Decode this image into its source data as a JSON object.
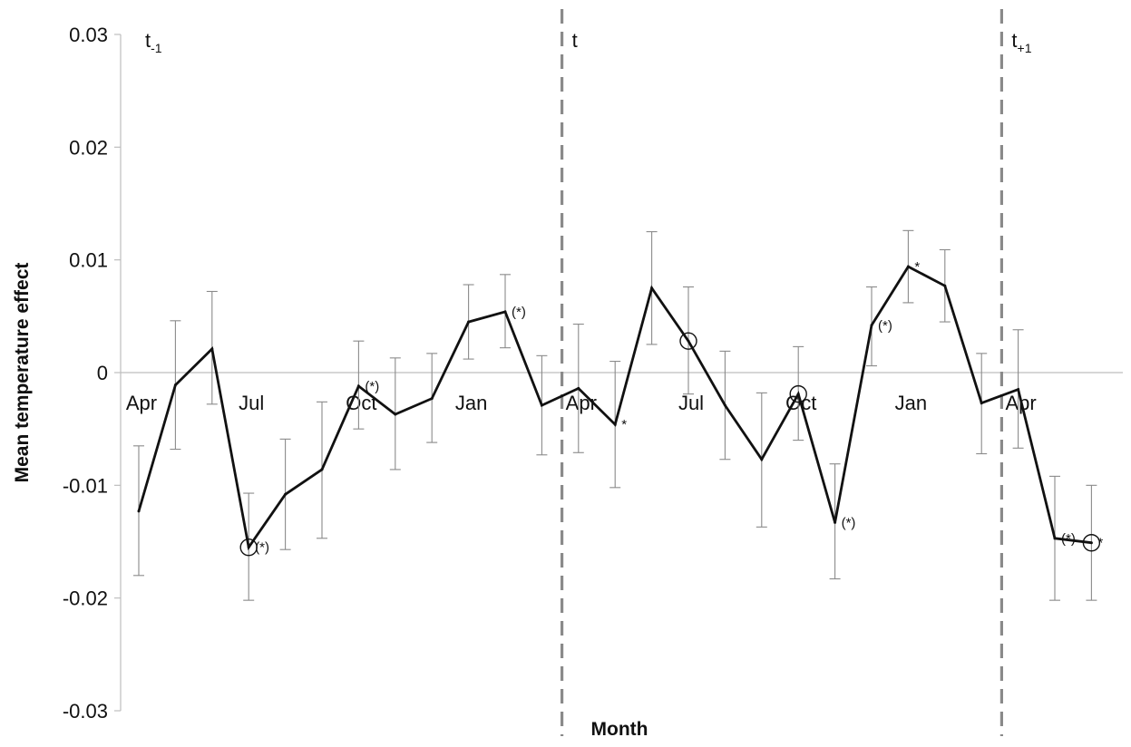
{
  "chart_data": {
    "type": "line",
    "title": "",
    "xlabel": "Month",
    "ylabel": "Mean temperature effect",
    "ylim": [
      -0.03,
      0.03
    ],
    "yticks": [
      0.03,
      0.02,
      0.01,
      0,
      -0.01,
      -0.02,
      -0.03
    ],
    "ytick_labels": [
      "0.03",
      "0.02",
      "0.01",
      "0",
      "-0.01",
      "-0.02",
      "-0.03"
    ],
    "grid": false,
    "period_labels": [
      "t-1",
      "t",
      "t+1"
    ],
    "x_tick_labels": [
      "Apr",
      "Jul",
      "Oct",
      "Jan",
      "Apr",
      "Jul",
      "Oct",
      "Jan",
      "Apr"
    ],
    "x_tick_indices": [
      0,
      3,
      6,
      9,
      12,
      15,
      18,
      21,
      24
    ],
    "period_boundaries": [
      11.5,
      23.5
    ],
    "zero_line": true,
    "series": [
      {
        "values": [
          -0.0123,
          -0.0011,
          0.0021,
          -0.0155,
          -0.0108,
          -0.0086,
          -0.0012,
          -0.0037,
          -0.0023,
          0.0045,
          0.0054,
          -0.0029,
          -0.0014,
          -0.0046,
          0.0075,
          0.0028,
          -0.0029,
          -0.0077,
          -0.0019,
          -0.0133,
          0.0042,
          0.0094,
          0.0077,
          -0.0027,
          -0.0015,
          -0.0147,
          -0.0151
        ],
        "err_upper": [
          -0.0065,
          0.0046,
          0.0072,
          -0.0107,
          -0.0059,
          -0.0026,
          0.0028,
          0.0013,
          0.0017,
          0.0078,
          0.0087,
          0.0015,
          0.0043,
          0.001,
          0.0125,
          0.0076,
          0.0019,
          -0.0018,
          0.0023,
          -0.0081,
          0.0076,
          0.0126,
          0.0109,
          0.0017,
          0.0038,
          -0.0092,
          -0.01
        ],
        "err_lower": [
          -0.018,
          -0.0068,
          -0.0028,
          -0.0202,
          -0.0157,
          -0.0147,
          -0.005,
          -0.0086,
          -0.0062,
          0.0012,
          0.0022,
          -0.0073,
          -0.0071,
          -0.0102,
          0.0025,
          -0.0019,
          -0.0077,
          -0.0137,
          -0.006,
          -0.0183,
          0.0006,
          0.0062,
          0.0045,
          -0.0072,
          -0.0067,
          -0.0202,
          -0.0202
        ]
      }
    ],
    "circle_markers": [
      3,
      15,
      18,
      26
    ],
    "annotations": [
      {
        "index": 3,
        "text": "(*)"
      },
      {
        "index": 6,
        "text": "(*)"
      },
      {
        "index": 10,
        "text": "(*)"
      },
      {
        "index": 13,
        "text": "*"
      },
      {
        "index": 19,
        "text": "(*)"
      },
      {
        "index": 20,
        "text": "(*)"
      },
      {
        "index": 21,
        "text": "*"
      },
      {
        "index": 25,
        "text": "(*)"
      },
      {
        "index": 26,
        "text": "*"
      }
    ],
    "colors": {
      "series_line": "#111111",
      "error_bar": "#8a8a8a",
      "axis": "#bdbdbd",
      "period_divider": "#8a8a8a"
    }
  }
}
